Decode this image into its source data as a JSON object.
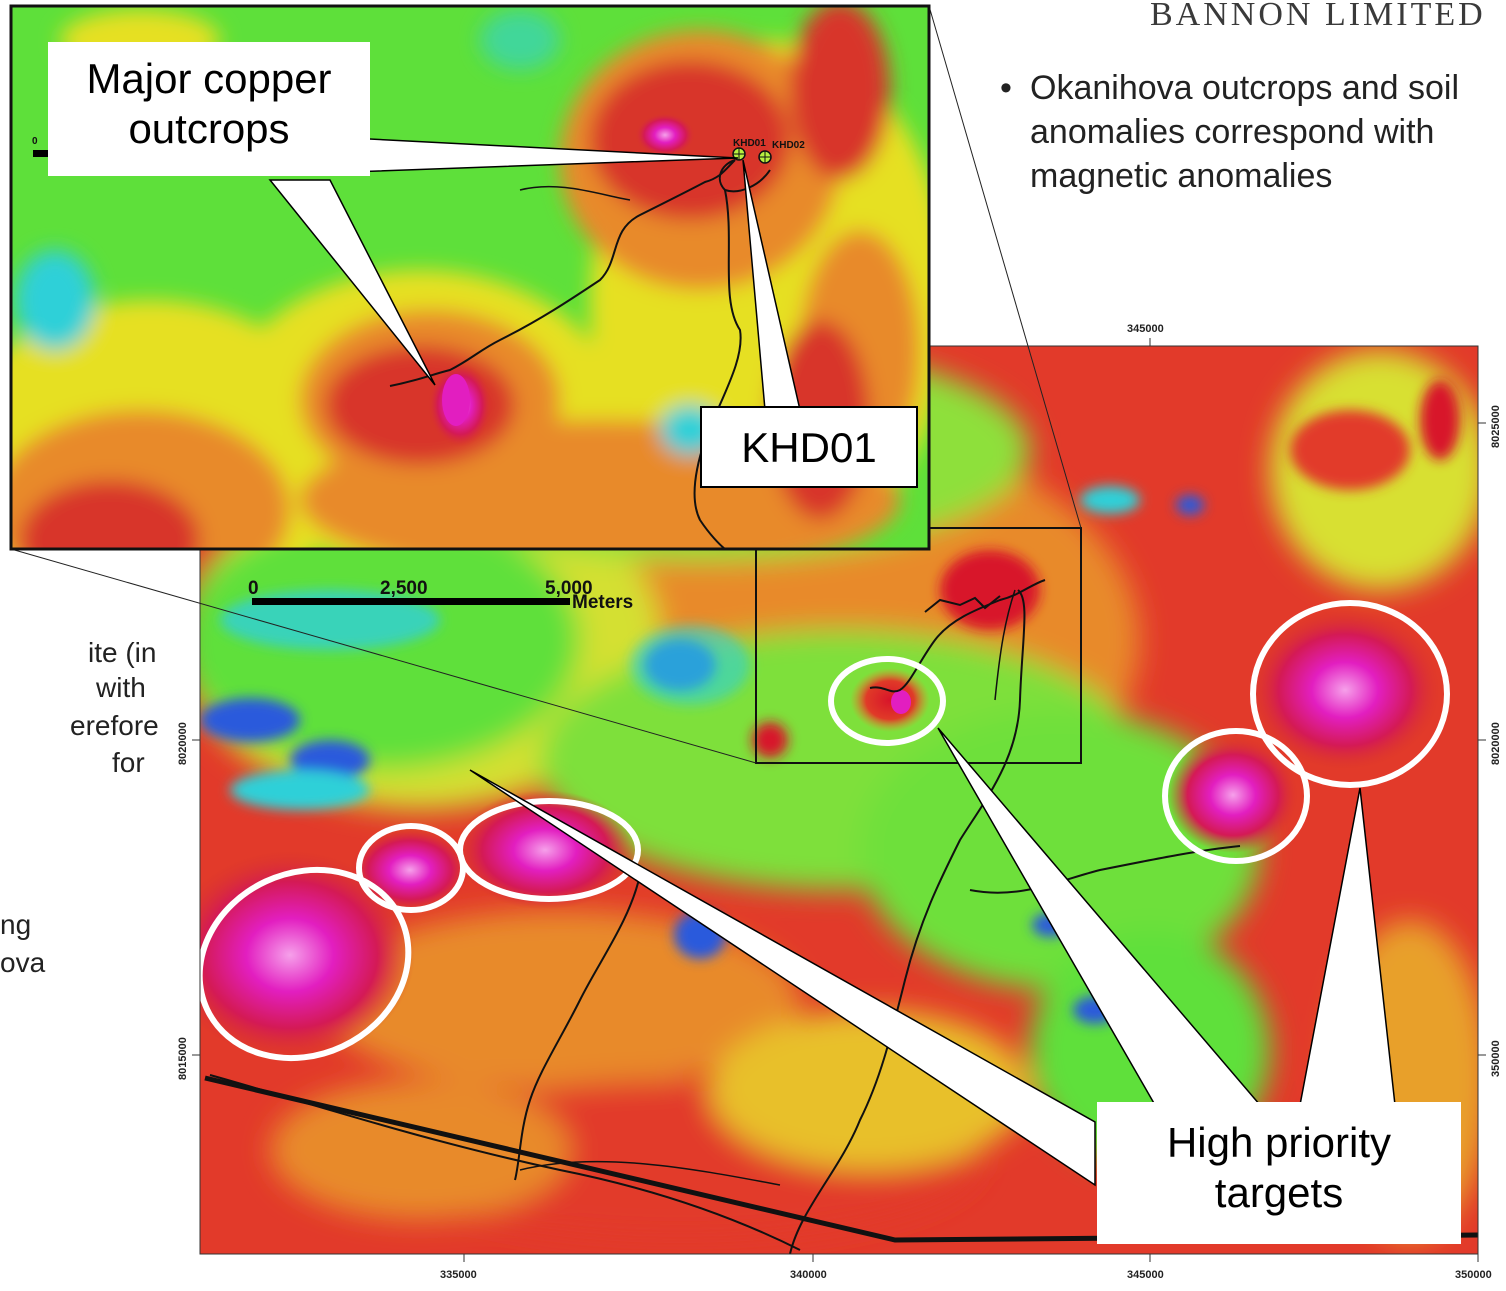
{
  "header": {
    "company": "BANNON LIMITED"
  },
  "bullet": {
    "marker": "•",
    "text": "Okanihova outcrops and soil anomalies correspond with magnetic anomalies"
  },
  "left_text_fragments": [
    "ite (in",
    "with",
    "erefore",
    "for",
    "ng",
    "ova"
  ],
  "callouts": {
    "major_copper": "Major copper outcrops",
    "khd01": "KHD01",
    "high_priority": "High priority targets"
  },
  "main_map": {
    "top_tick": "345000",
    "bottom_ticks": [
      "335000",
      "340000",
      "345000",
      "350000"
    ],
    "right_ticks": [
      "8025000",
      "8020000",
      "350000"
    ],
    "left_ticks": [
      "8020000",
      "8015000"
    ],
    "scalebar": {
      "labels": [
        "0",
        "2,500",
        "5,000"
      ],
      "unit": "Meters"
    }
  },
  "inset_map": {
    "scale_zero": "0",
    "wells": [
      "KHD01",
      "KHD02"
    ]
  },
  "colors": {
    "mag_high": "#e8129a",
    "mag_red": "#d8342a",
    "mag_orange": "#e88a2a",
    "mag_yellow": "#e6e020",
    "mag_green": "#5ee03a",
    "mag_cyan": "#2ed0d8",
    "mag_blue": "#2a5adc",
    "target_ring": "#ffffff"
  }
}
